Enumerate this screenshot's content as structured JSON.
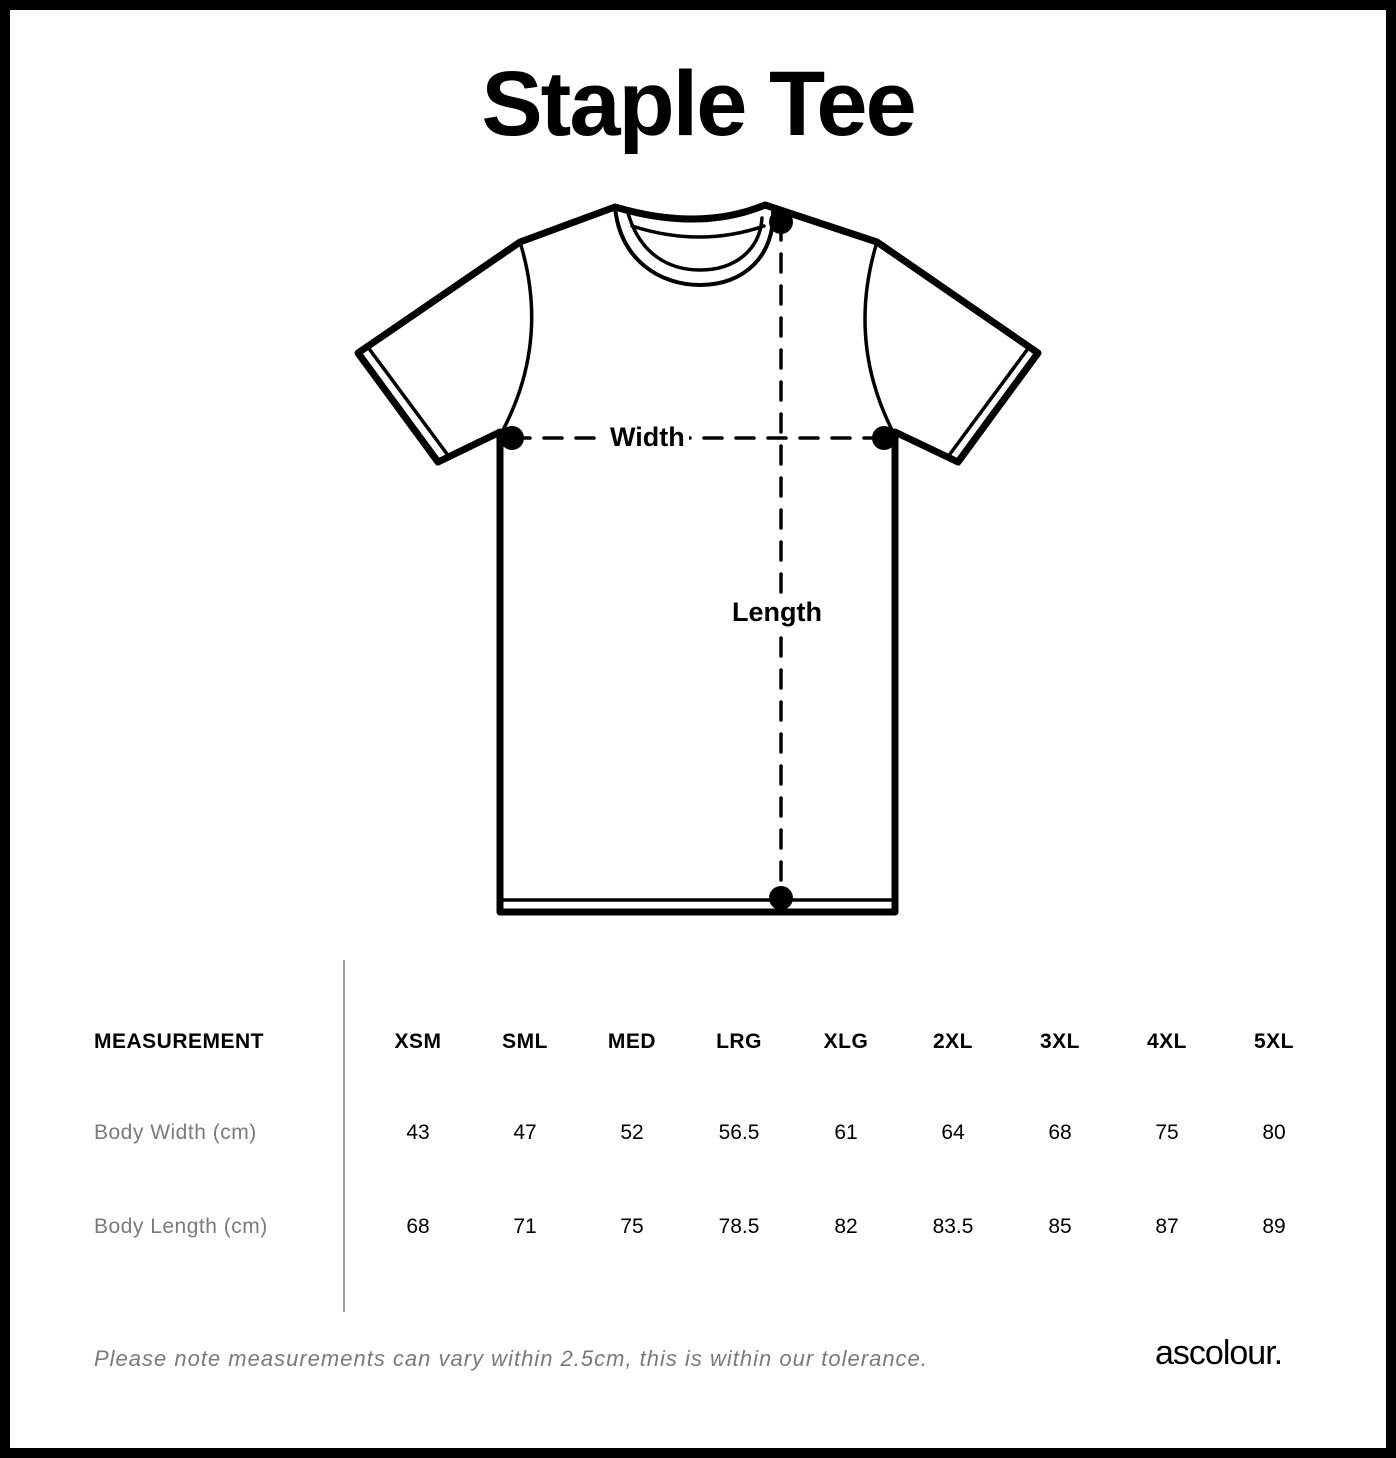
{
  "title": "Staple Tee",
  "diagram": {
    "width_label": "Width",
    "length_label": "Length"
  },
  "table": {
    "header_label": "MEASUREMENT",
    "sizes": [
      "XSM",
      "SML",
      "MED",
      "LRG",
      "XLG",
      "2XL",
      "3XL",
      "4XL",
      "5XL"
    ],
    "rows": [
      {
        "label": "Body Width (cm)",
        "values": [
          "43",
          "47",
          "52",
          "56.5",
          "61",
          "64",
          "68",
          "75",
          "80"
        ]
      },
      {
        "label": "Body Length (cm)",
        "values": [
          "68",
          "71",
          "75",
          "78.5",
          "82",
          "83.5",
          "85",
          "87",
          "89"
        ]
      }
    ]
  },
  "note": "Please note measurements can vary within 2.5cm, this is within our tolerance.",
  "brand": "ascolour."
}
